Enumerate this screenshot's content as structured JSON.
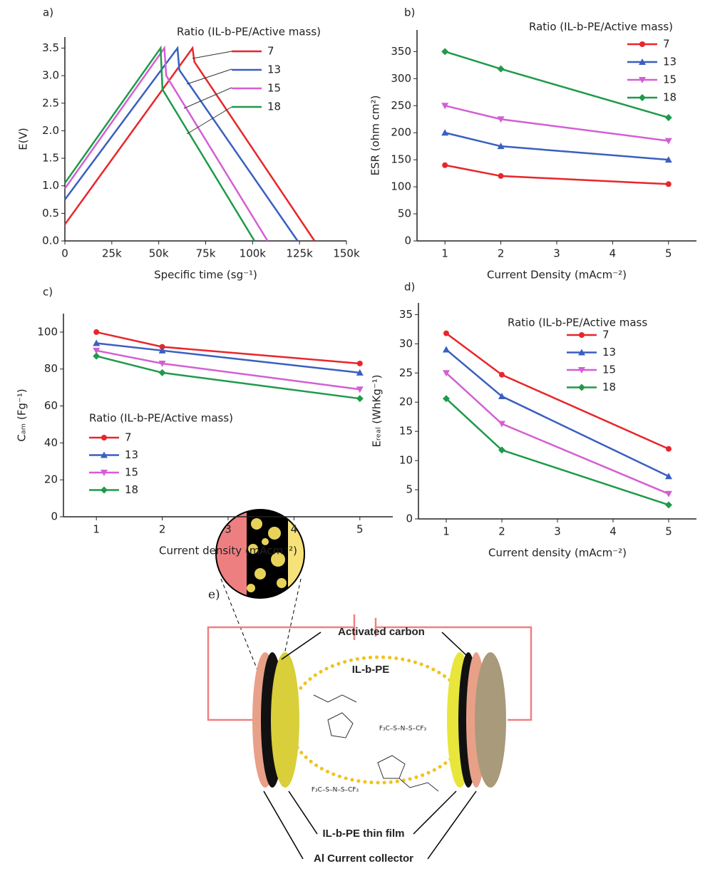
{
  "chart_data": [
    {
      "type": "line",
      "panel": "a)",
      "x_label": "Specific time (sg⁻¹)",
      "y_label": "E(V)",
      "legend_title": "Ratio (IL-b-PE/Active mass)",
      "xlim": [
        0,
        150000
      ],
      "xticks": [
        0,
        {
          "value": 25000,
          "label": "25k"
        },
        {
          "value": 50000,
          "label": "50k"
        },
        {
          "value": 75000,
          "label": "75k"
        },
        {
          "value": 100000,
          "label": "100k"
        },
        {
          "value": 125000,
          "label": "125k"
        },
        {
          "value": 150000,
          "label": "150k"
        }
      ],
      "ylim": [
        0,
        3.7
      ],
      "yticks": [
        {
          "value": 0,
          "label": "0.0"
        },
        0.5,
        {
          "value": 1,
          "label": "1.0"
        },
        1.5,
        {
          "value": 2,
          "label": "2.0"
        },
        2.5,
        {
          "value": 3,
          "label": "3.0"
        },
        3.5
      ],
      "series": [
        {
          "name": "7",
          "color": "#e8262b",
          "x": [
            0,
            68000,
            69000,
            133000
          ],
          "values": [
            0.3,
            3.5,
            3.25,
            0
          ]
        },
        {
          "name": "13",
          "color": "#3a5fc0",
          "x": [
            0,
            60000,
            61000,
            124000
          ],
          "values": [
            0.75,
            3.5,
            3.1,
            0
          ]
        },
        {
          "name": "15",
          "color": "#d35fd3",
          "x": [
            0,
            53000,
            54000,
            108000
          ],
          "values": [
            0.95,
            3.5,
            3.0,
            0
          ]
        },
        {
          "name": "18",
          "color": "#1f9a4a",
          "x": [
            0,
            51000,
            52000,
            101000
          ],
          "values": [
            1.05,
            3.5,
            2.75,
            0
          ]
        }
      ]
    },
    {
      "type": "line",
      "panel": "b)",
      "x_label": "Current Density (mAcm⁻²)",
      "y_label": "ESR (ohm cm²)",
      "legend_title": "Ratio (IL-b-PE/Active mass)",
      "x": [
        1,
        2,
        5
      ],
      "xlim": [
        0.5,
        5.5
      ],
      "xticks": [
        1,
        2,
        3,
        4,
        5
      ],
      "ylim": [
        0,
        390
      ],
      "yticks": [
        0,
        50,
        100,
        150,
        200,
        250,
        300,
        350
      ],
      "series": [
        {
          "name": "7",
          "color": "#e8262b",
          "marker": "circle",
          "values": [
            140,
            120,
            105
          ]
        },
        {
          "name": "13",
          "color": "#3a5fc0",
          "marker": "triangle-up",
          "values": [
            200,
            175,
            150
          ]
        },
        {
          "name": "15",
          "color": "#d35fd3",
          "marker": "triangle-down",
          "values": [
            250,
            225,
            185
          ]
        },
        {
          "name": "18",
          "color": "#1f9a4a",
          "marker": "diamond",
          "values": [
            350,
            318,
            228
          ]
        }
      ]
    },
    {
      "type": "line",
      "panel": "c)",
      "x_label": "Current density (mAcm⁻²)",
      "y_label": "Cₐₘ (Fg⁻¹)",
      "legend_title": "Ratio (IL-b-PE/Active mass)",
      "x": [
        1,
        2,
        5
      ],
      "xlim": [
        0.5,
        5.5
      ],
      "xticks": [
        1,
        2,
        3,
        4,
        5
      ],
      "ylim": [
        0,
        110
      ],
      "yticks": [
        0,
        20,
        40,
        60,
        80,
        100
      ],
      "series": [
        {
          "name": "7",
          "color": "#e8262b",
          "marker": "circle",
          "values": [
            100,
            92,
            83
          ]
        },
        {
          "name": "13",
          "color": "#3a5fc0",
          "marker": "triangle-up",
          "values": [
            94,
            90,
            78
          ]
        },
        {
          "name": "15",
          "color": "#d35fd3",
          "marker": "triangle-down",
          "values": [
            90,
            83,
            69
          ]
        },
        {
          "name": "18",
          "color": "#1f9a4a",
          "marker": "diamond",
          "values": [
            87,
            78,
            64
          ]
        }
      ]
    },
    {
      "type": "line",
      "panel": "d)",
      "x_label": "Current density (mAcm⁻²)",
      "y_label": "Eᵣₑₐₗ (WhKg⁻¹)",
      "legend_title": "Ratio (IL-b-PE/Active mass",
      "x": [
        1,
        2,
        5
      ],
      "xlim": [
        0.5,
        5.5
      ],
      "xticks": [
        1,
        2,
        3,
        4,
        5
      ],
      "ylim": [
        0,
        37
      ],
      "yticks": [
        0,
        5,
        10,
        15,
        20,
        25,
        30,
        35
      ],
      "series": [
        {
          "name": "7",
          "color": "#e8262b",
          "marker": "circle",
          "values": [
            31.8,
            24.7,
            12
          ]
        },
        {
          "name": "13",
          "color": "#3a5fc0",
          "marker": "triangle-up",
          "values": [
            29,
            21,
            7.3
          ]
        },
        {
          "name": "15",
          "color": "#d35fd3",
          "marker": "triangle-down",
          "values": [
            25,
            16.3,
            4.3
          ]
        },
        {
          "name": "18",
          "color": "#1f9a4a",
          "marker": "diamond",
          "values": [
            20.6,
            11.8,
            2.4
          ]
        }
      ]
    }
  ],
  "diagram": {
    "panel": "e)",
    "activated_carbon": "Activated carbon",
    "polymer": "IL-b-PE",
    "thin_film": "IL-b-PE thin film",
    "collector": "Al Current collector",
    "formula": [
      "F₃C–S–N–S–CF₃",
      "F₃C–S–N–S–CF₃"
    ]
  }
}
